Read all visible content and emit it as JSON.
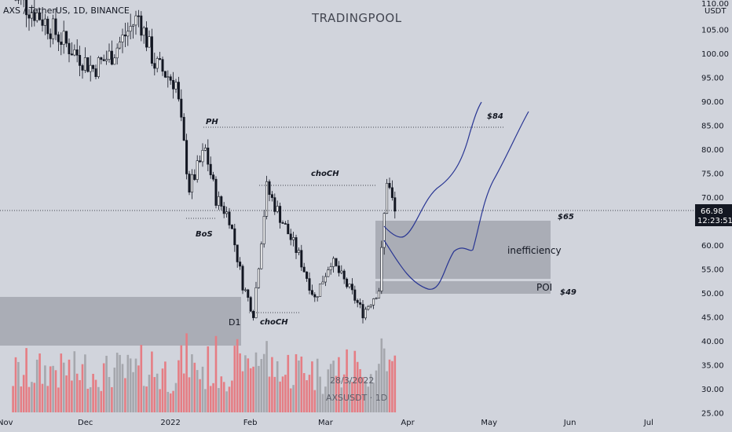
{
  "header": {
    "symbol_line": "AXS / TetherUS, 1D, BINANCE",
    "brand": "TRADINGPOOL"
  },
  "price_axis": {
    "unit": "USDT",
    "top_tick": "110.00",
    "ticks": [
      "105.00",
      "100.00",
      "95.00",
      "90.00",
      "85.00",
      "80.00",
      "75.00",
      "70.00",
      "65.00",
      "60.00",
      "55.00",
      "50.00",
      "45.00",
      "40.00",
      "35.00",
      "30.00",
      "25.00"
    ],
    "last_price": "66.98",
    "countdown": "12:23:51",
    "last_price_color": "#131722"
  },
  "time_axis": {
    "labels": [
      "Nov",
      "Dec",
      "2022",
      "Feb",
      "Mar",
      "Apr",
      "May",
      "Jun",
      "Jul"
    ]
  },
  "annotations": {
    "ph": "PH",
    "bos": "BoS",
    "choch_top": "choCH",
    "choch_bottom": "choCH",
    "d1": "D1",
    "target_84": "$84",
    "level_65": "$65",
    "level_49": "$49",
    "inefficiency": "inefficiency",
    "poi": "POI"
  },
  "watermark": {
    "date": "28/3/2022",
    "symbol": "AXSUSDT · 1D"
  },
  "colors": {
    "background": "#d1d4dc",
    "up": "#ffffff",
    "down": "#131722",
    "wick": "#131722",
    "volume_up": "#a5a7ad",
    "volume_down": "#e57d84",
    "zone": "#a3a6af",
    "projection": "#283593"
  },
  "chart_data": {
    "type": "candlestick",
    "symbol": "AXSUSDT",
    "interval": "1D",
    "ylim": [
      25,
      110
    ],
    "x_range": [
      "2021-11-01",
      "2022-07-20"
    ],
    "grid": false,
    "ohlc_approx": [
      {
        "date": "2021-11-05",
        "close": 112
      },
      {
        "date": "2021-11-15",
        "close": 108
      },
      {
        "date": "2021-11-25",
        "close": 102
      },
      {
        "date": "2021-12-05",
        "close": 97
      },
      {
        "date": "2021-12-12",
        "close": 100
      },
      {
        "date": "2021-12-22",
        "close": 108
      },
      {
        "date": "2021-12-28",
        "close": 98
      },
      {
        "date": "2022-01-05",
        "close": 94
      },
      {
        "date": "2022-01-10",
        "close": 72
      },
      {
        "date": "2022-01-16",
        "close": 80
      },
      {
        "date": "2022-01-20",
        "close": 70
      },
      {
        "date": "2022-01-25",
        "close": 66
      },
      {
        "date": "2022-01-30",
        "close": 52
      },
      {
        "date": "2022-02-03",
        "close": 46
      },
      {
        "date": "2022-02-08",
        "close": 72
      },
      {
        "date": "2022-02-14",
        "close": 65
      },
      {
        "date": "2022-02-20",
        "close": 58
      },
      {
        "date": "2022-02-26",
        "close": 49
      },
      {
        "date": "2022-03-04",
        "close": 57
      },
      {
        "date": "2022-03-12",
        "close": 50
      },
      {
        "date": "2022-03-16",
        "close": 46
      },
      {
        "date": "2022-03-22",
        "close": 51
      },
      {
        "date": "2022-03-25",
        "close": 74
      },
      {
        "date": "2022-03-28",
        "close": 66.98
      }
    ],
    "levels": [
      {
        "label": "PH",
        "value": 84
      },
      {
        "label": "choCH",
        "value": 72
      },
      {
        "label": "BoS",
        "value": 65
      },
      {
        "label": "choCH",
        "value": 45.8
      },
      {
        "label": "last",
        "value": 66.98
      }
    ],
    "zones": [
      {
        "label": "inefficiency",
        "from": 53,
        "to": 64.5
      },
      {
        "label": "POI",
        "from": 49.8,
        "to": 52.2
      },
      {
        "label": "D1",
        "from": 39,
        "to": 49
      }
    ],
    "volume_scale": "relative"
  }
}
